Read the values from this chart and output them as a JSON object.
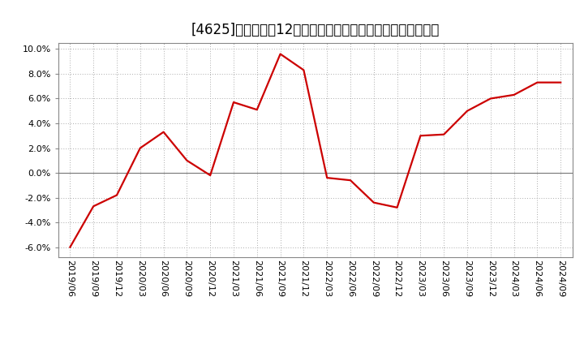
{
  "title": "[4625]　売上高の12か月移動合計の対前年同期増減率の推移",
  "line_color": "#cc0000",
  "background_color": "#ffffff",
  "grid_color": "#aaaaaa",
  "ylim": [
    -0.068,
    0.105
  ],
  "yticks": [
    -0.06,
    -0.04,
    -0.02,
    0.0,
    0.02,
    0.04,
    0.06,
    0.08,
    0.1
  ],
  "dates": [
    "2019/06",
    "2019/09",
    "2019/12",
    "2020/03",
    "2020/06",
    "2020/09",
    "2020/12",
    "2021/03",
    "2021/06",
    "2021/09",
    "2021/12",
    "2022/03",
    "2022/06",
    "2022/09",
    "2022/12",
    "2023/03",
    "2023/06",
    "2023/09",
    "2023/12",
    "2024/03",
    "2024/06",
    "2024/09"
  ],
  "values": [
    -0.06,
    -0.027,
    -0.018,
    0.02,
    0.033,
    0.01,
    -0.002,
    0.057,
    0.051,
    0.096,
    0.083,
    -0.004,
    -0.006,
    -0.024,
    -0.028,
    0.03,
    0.031,
    0.05,
    0.06,
    0.063,
    0.073,
    0.073
  ],
  "title_fontsize": 12,
  "tick_fontsize": 8,
  "line_width": 1.6
}
